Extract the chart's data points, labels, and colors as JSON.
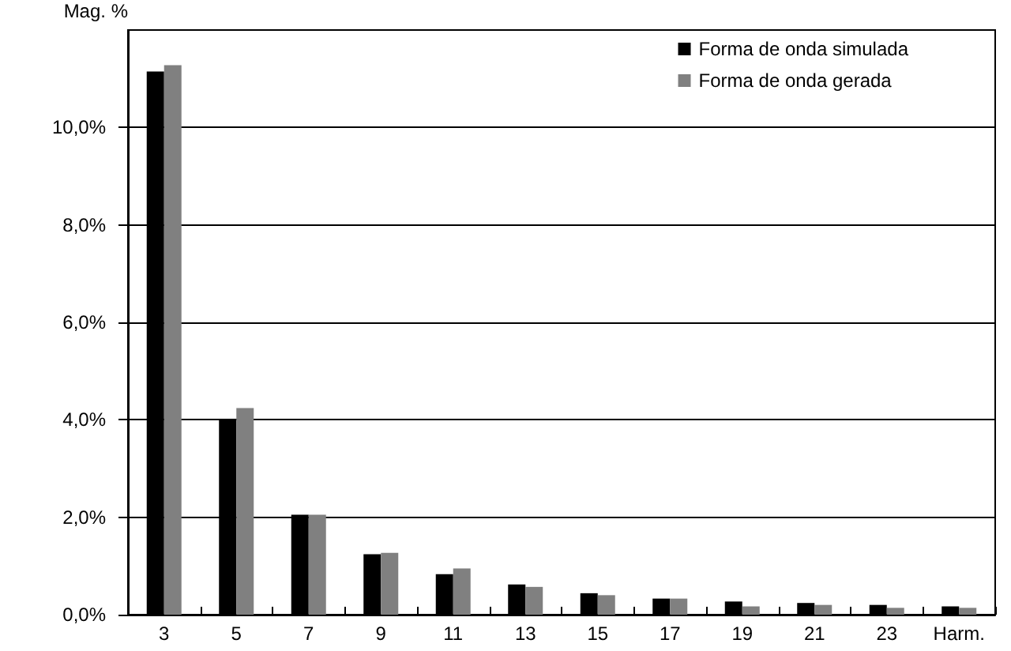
{
  "chart_data": {
    "type": "bar",
    "ylabel": "Mag. %",
    "categories": [
      "3",
      "5",
      "7",
      "9",
      "11",
      "13",
      "15",
      "17",
      "19",
      "21",
      "23",
      "Harm."
    ],
    "series": [
      {
        "name": "Forma de onda simulada",
        "color": "#000000",
        "values": [
          11.15,
          4.0,
          2.05,
          1.24,
          0.83,
          0.62,
          0.44,
          0.33,
          0.27,
          0.24,
          0.2,
          0.17
        ]
      },
      {
        "name": "Forma de onda gerada",
        "color": "#808080",
        "values": [
          11.28,
          4.24,
          2.05,
          1.27,
          0.95,
          0.57,
          0.4,
          0.33,
          0.17,
          0.2,
          0.14,
          0.14
        ]
      }
    ],
    "ylim": [
      0,
      12
    ],
    "yticks": [
      {
        "value": 0,
        "label": "0,0%"
      },
      {
        "value": 2,
        "label": "2,0%"
      },
      {
        "value": 4,
        "label": "4,0%"
      },
      {
        "value": 6,
        "label": "6,0%"
      },
      {
        "value": 8,
        "label": "8,0%"
      },
      {
        "value": 10,
        "label": "10,0%"
      }
    ],
    "grid": "y",
    "legend": "top right"
  }
}
